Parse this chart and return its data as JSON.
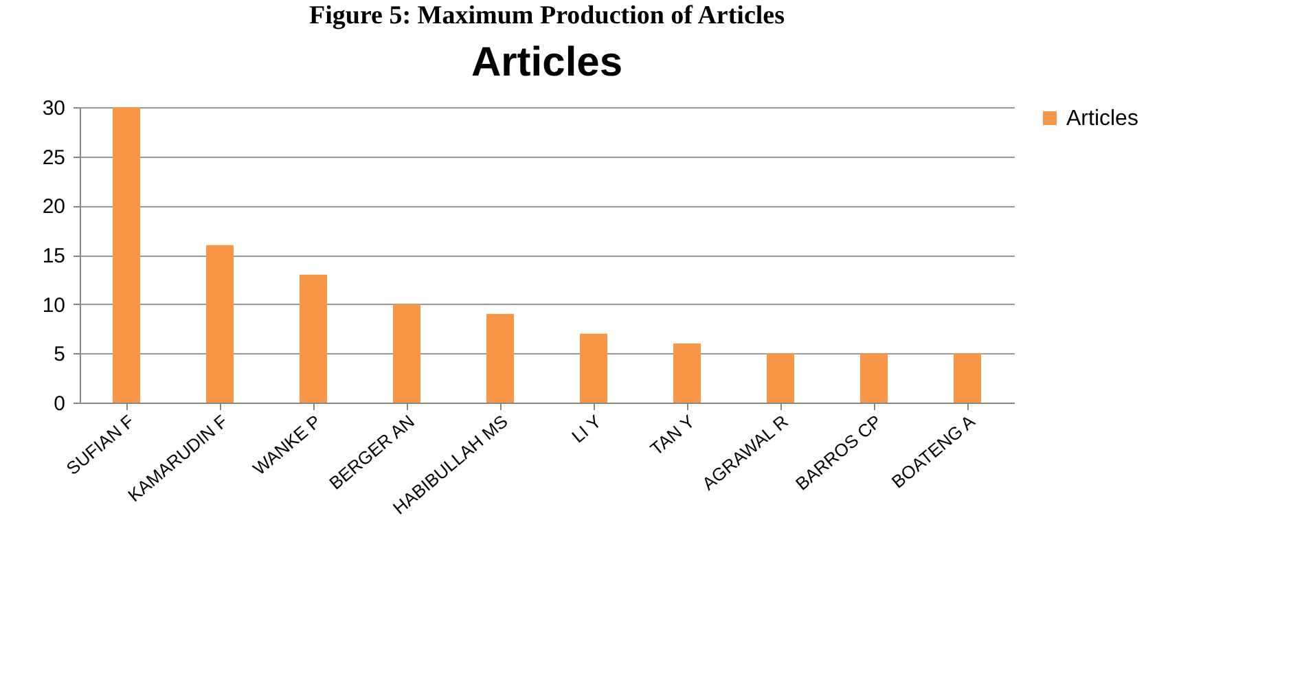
{
  "chart_data": {
    "type": "bar",
    "title": "Figure 5: Maximum Production of Articles",
    "subtitle": "Articles",
    "categories": [
      "SUFIAN F",
      "KAMARUDIN F",
      "WANKE P",
      "BERGER AN",
      "HABIBULLAH MS",
      "LI Y",
      "TAN Y",
      "AGRAWAL R",
      "BARROS CP",
      "BOATENG A"
    ],
    "series": [
      {
        "name": "Articles",
        "color": "#f79646",
        "values": [
          30,
          16,
          13,
          10,
          9,
          7,
          6,
          5,
          5,
          5
        ]
      }
    ],
    "ylim": [
      0,
      30
    ],
    "yticks": [
      0,
      5,
      10,
      15,
      20,
      25,
      30
    ],
    "grid": "y",
    "legend": "right"
  }
}
